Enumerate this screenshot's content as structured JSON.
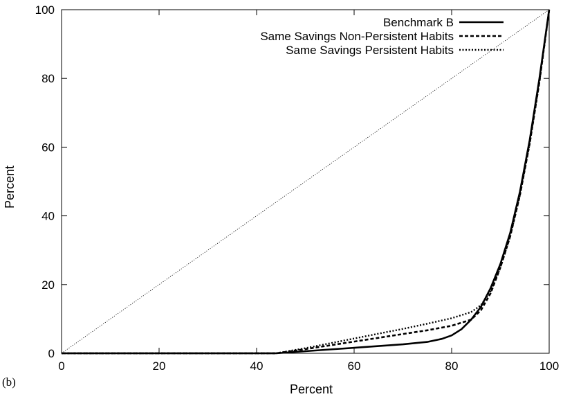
{
  "chart_data": {
    "type": "line",
    "panel_label": "(b)",
    "xlabel": "Percent",
    "ylabel": "Percent",
    "xlim": [
      0,
      100
    ],
    "ylim": [
      0,
      100
    ],
    "x_ticks": [
      0,
      20,
      40,
      60,
      80,
      100
    ],
    "y_ticks": [
      0,
      20,
      40,
      60,
      80,
      100
    ],
    "grid": false,
    "legend_position": "top-right",
    "reference_line": {
      "x": [
        0,
        100
      ],
      "y": [
        0,
        100
      ],
      "style": "dotted-thin"
    },
    "series": [
      {
        "name": "Benchmark B",
        "style": "solid",
        "x": [
          0,
          40,
          44,
          50,
          55,
          60,
          65,
          70,
          75,
          78,
          80,
          82,
          84,
          86,
          88,
          90,
          92,
          94,
          96,
          98,
          100
        ],
        "y": [
          0,
          0,
          0,
          0.6,
          1.1,
          1.6,
          2.1,
          2.6,
          3.3,
          4.2,
          5.2,
          7.0,
          9.8,
          13.5,
          19,
          26,
          35,
          47,
          62,
          80,
          100
        ]
      },
      {
        "name": "Same  Savings Non-Persistent Habits",
        "style": "dashed",
        "x": [
          0,
          40,
          44,
          50,
          55,
          60,
          65,
          70,
          75,
          80,
          84,
          86,
          88,
          90,
          92,
          94,
          96,
          98,
          100
        ],
        "y": [
          0,
          0,
          0,
          1.2,
          2.3,
          3.4,
          4.5,
          5.6,
          6.7,
          8.0,
          9.8,
          12.5,
          17.5,
          25,
          34,
          46,
          61,
          79,
          100
        ]
      },
      {
        "name": "Same  Savings Persistent Habits",
        "style": "dotted",
        "x": [
          0,
          40,
          44,
          50,
          55,
          60,
          65,
          70,
          75,
          80,
          84,
          86,
          88,
          90,
          92,
          94,
          96,
          98,
          100
        ],
        "y": [
          0,
          0,
          0,
          1.5,
          2.9,
          4.3,
          5.7,
          7.1,
          8.6,
          10.2,
          12.0,
          14.0,
          18.0,
          25,
          34,
          46,
          61,
          79,
          100
        ]
      }
    ]
  }
}
